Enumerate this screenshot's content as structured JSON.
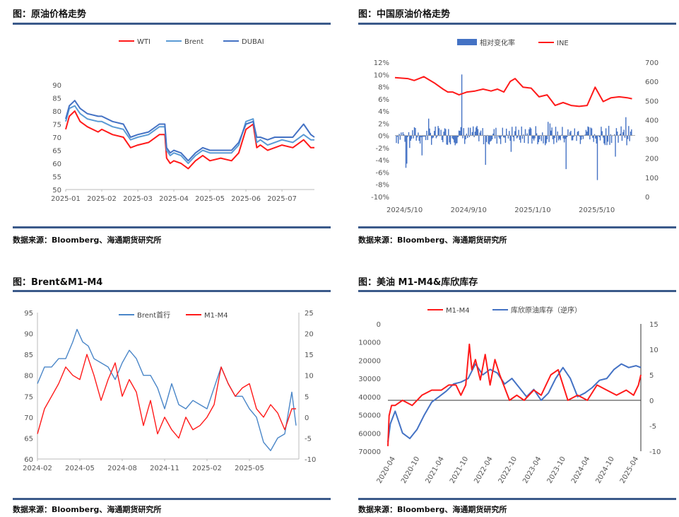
{
  "panels": {
    "p1": {
      "title": "图：原油价格走势",
      "source": "数据来源：Bloomberg、海通期货研究所"
    },
    "p2": {
      "title": "图：中国原油价格走势",
      "source": "数据来源：Bloomberg、海通期货研究所"
    },
    "p3": {
      "title": "图：Brent&M1-M4",
      "source": "数据来源：Bloomberg、海通期货研究所"
    },
    "p4": {
      "title": "图：美油 M1-M4&库欣库存",
      "source": "数据来源：Bloomberg、海通期货研究所"
    }
  },
  "chart_data": [
    {
      "id": "c1",
      "type": "line",
      "title": "",
      "x_ticks": [
        "2025-01",
        "2025-02",
        "2025-03",
        "2025-04",
        "2025-05",
        "2025-06",
        "2025-07"
      ],
      "xlim": [
        0,
        6.9
      ],
      "y_ticks": [
        "50",
        "55",
        "60",
        "65",
        "70",
        "75",
        "80",
        "85",
        "90"
      ],
      "ylim": [
        50,
        90
      ],
      "legend": "top-center",
      "series": [
        {
          "name": "WTI",
          "color": "#ff1a1a",
          "x": [
            0,
            0.1,
            0.25,
            0.4,
            0.6,
            0.9,
            1.0,
            1.3,
            1.6,
            1.8,
            2.0,
            2.3,
            2.6,
            2.75,
            2.8,
            2.9,
            3.0,
            3.2,
            3.4,
            3.6,
            3.8,
            4.0,
            4.3,
            4.6,
            4.8,
            5.0,
            5.2,
            5.3,
            5.4,
            5.6,
            5.8,
            6.0,
            6.3,
            6.6,
            6.8,
            6.9
          ],
          "values": [
            73,
            78,
            80,
            76,
            74,
            72,
            73,
            71,
            70,
            66,
            67,
            68,
            71,
            71,
            62,
            60,
            61,
            60,
            58,
            61,
            63,
            61,
            62,
            61,
            64,
            73,
            75,
            66,
            67,
            65,
            66,
            67,
            66,
            69,
            66,
            66
          ]
        },
        {
          "name": "Brent",
          "color": "#5b9bd5",
          "x": [
            0,
            0.1,
            0.25,
            0.4,
            0.6,
            0.9,
            1.0,
            1.3,
            1.6,
            1.8,
            2.0,
            2.3,
            2.6,
            2.75,
            2.8,
            2.9,
            3.0,
            3.2,
            3.4,
            3.6,
            3.8,
            4.0,
            4.3,
            4.6,
            4.8,
            5.0,
            5.2,
            5.3,
            5.4,
            5.6,
            5.8,
            6.0,
            6.3,
            6.6,
            6.8,
            6.9
          ],
          "values": [
            76,
            81,
            82,
            79,
            77,
            76,
            76,
            74,
            73,
            69,
            70,
            71,
            74,
            74,
            65,
            63,
            64,
            63,
            60,
            63,
            65,
            64,
            64,
            64,
            67,
            76,
            77,
            68,
            69,
            67,
            68,
            69,
            68,
            71,
            69,
            69
          ]
        },
        {
          "name": "DUBAI",
          "color": "#4472c4",
          "x": [
            0,
            0.1,
            0.25,
            0.4,
            0.6,
            0.9,
            1.0,
            1.3,
            1.6,
            1.8,
            2.0,
            2.3,
            2.6,
            2.75,
            2.8,
            2.9,
            3.0,
            3.2,
            3.4,
            3.6,
            3.8,
            4.0,
            4.3,
            4.6,
            4.8,
            5.0,
            5.2,
            5.3,
            5.4,
            5.6,
            5.8,
            6.0,
            6.3,
            6.6,
            6.8,
            6.9
          ],
          "values": [
            77,
            82,
            84,
            81,
            79,
            78,
            78,
            76,
            75,
            70,
            71,
            72,
            75,
            75,
            66,
            64,
            65,
            64,
            61,
            64,
            66,
            65,
            65,
            65,
            68,
            75,
            76,
            70,
            70,
            69,
            70,
            70,
            70,
            75,
            71,
            70
          ]
        }
      ]
    },
    {
      "id": "c2",
      "type": "bar",
      "title": "",
      "x_ticks": [
        "2024/5/10",
        "2024/9/10",
        "2025/1/10",
        "2025/5/10"
      ],
      "xlim": [
        0,
        15
      ],
      "y_left_ticks": [
        "-10%",
        "-8%",
        "-6%",
        "-4%",
        "-2%",
        "0%",
        "2%",
        "4%",
        "6%",
        "8%",
        "10%",
        "12%"
      ],
      "ylim_left": [
        -10,
        12
      ],
      "y_right_ticks": [
        "0",
        "100",
        "200",
        "300",
        "400",
        "500",
        "600",
        "700"
      ],
      "ylim_right": [
        0,
        700
      ],
      "legend": "top-center",
      "series": [
        {
          "name": "相对变化率",
          "type": "bar",
          "color": "#4472c4",
          "axis": "left"
        },
        {
          "name": "INE",
          "type": "line",
          "color": "#ff1a1a",
          "axis": "right",
          "x": [
            0,
            0.8,
            1.2,
            1.8,
            2.5,
            3.0,
            3.3,
            3.6,
            4.0,
            4.5,
            5.0,
            5.5,
            6.0,
            6.4,
            6.8,
            7.2,
            7.5,
            8.0,
            8.5,
            9.0,
            9.5,
            10.0,
            10.5,
            11.0,
            11.5,
            12.0,
            12.5,
            13.0,
            13.5,
            14.0,
            14.5,
            14.8
          ],
          "values": [
            620,
            615,
            605,
            625,
            590,
            560,
            545,
            545,
            530,
            545,
            550,
            560,
            550,
            560,
            545,
            600,
            615,
            570,
            565,
            520,
            530,
            475,
            490,
            475,
            470,
            475,
            570,
            495,
            515,
            520,
            515,
            510
          ]
        }
      ]
    },
    {
      "id": "c3",
      "type": "line",
      "title": "",
      "x_ticks": [
        "2024-02",
        "2024-05",
        "2024-08",
        "2024-11",
        "2025-02",
        "2025-05"
      ],
      "xlim": [
        0,
        18.5
      ],
      "y_left_ticks": [
        "60",
        "65",
        "70",
        "75",
        "80",
        "85",
        "90",
        "95"
      ],
      "ylim_left": [
        60,
        95
      ],
      "y_right_ticks": [
        "-10",
        "-5",
        "0",
        "5",
        "10",
        "15",
        "20",
        "25"
      ],
      "ylim_right": [
        -10,
        25
      ],
      "legend": "top-center",
      "series": [
        {
          "name": "Brent首行",
          "color": "#4a86c8",
          "axis": "left",
          "x": [
            0,
            0.5,
            1.0,
            1.5,
            2.0,
            2.5,
            2.8,
            3.2,
            3.6,
            4.0,
            4.5,
            5.0,
            5.5,
            6.0,
            6.5,
            7.0,
            7.5,
            8.0,
            8.5,
            9.0,
            9.5,
            10.0,
            10.5,
            11.0,
            11.5,
            12.0,
            12.5,
            13.0,
            13.5,
            14.0,
            14.5,
            15.0,
            15.5,
            16.0,
            16.5,
            17.0,
            17.5,
            18.0,
            18.3
          ],
          "values": [
            78,
            82,
            82,
            84,
            84,
            88,
            91,
            88,
            87,
            84,
            83,
            82,
            79,
            83,
            86,
            84,
            80,
            80,
            77,
            72,
            78,
            73,
            72,
            74,
            73,
            72,
            77,
            82,
            78,
            75,
            75,
            72,
            70,
            64,
            62,
            65,
            66,
            76,
            68
          ]
        },
        {
          "name": "M1-M4",
          "color": "#ff1a1a",
          "axis": "right",
          "x": [
            0,
            0.5,
            1.0,
            1.5,
            2.0,
            2.5,
            3.0,
            3.5,
            4.0,
            4.5,
            5.0,
            5.5,
            6.0,
            6.5,
            7.0,
            7.5,
            8.0,
            8.5,
            9.0,
            9.5,
            10.0,
            10.5,
            11.0,
            11.5,
            12.0,
            12.5,
            13.0,
            13.5,
            14.0,
            14.5,
            15.0,
            15.5,
            16.0,
            16.5,
            17.0,
            17.5,
            18.0,
            18.3
          ],
          "values": [
            -4,
            2,
            5,
            8,
            12,
            10,
            9,
            15,
            10,
            4,
            9,
            13,
            5,
            9,
            6,
            -2,
            4,
            -4,
            0,
            -3,
            -5,
            0,
            -3,
            -2,
            0,
            3,
            12,
            8,
            5,
            7,
            8,
            2,
            0,
            3,
            1,
            -3,
            2,
            2
          ]
        }
      ]
    },
    {
      "id": "c4",
      "type": "line",
      "title": "",
      "x_ticks": [
        "2020-04",
        "2020-10",
        "2021-04",
        "2021-10",
        "2022-04",
        "2022-10",
        "2023-04",
        "2023-10",
        "2024-04",
        "2024-10",
        "2025-04"
      ],
      "xlim": [
        0,
        10.4
      ],
      "y_left_ticks": [
        "0",
        "10000",
        "20000",
        "30000",
        "40000",
        "50000",
        "60000",
        "70000"
      ],
      "ylim_left_inverted": [
        0,
        70000
      ],
      "y_right_ticks": [
        "-10",
        "-5",
        "0",
        "5",
        "10",
        "15"
      ],
      "ylim_right": [
        -10,
        15
      ],
      "legend": "top-center",
      "series": [
        {
          "name": "M1-M4",
          "color": "#ff1a1a",
          "axis": "right",
          "x": [
            0,
            0.05,
            0.15,
            0.3,
            0.6,
            1.0,
            1.4,
            1.8,
            2.2,
            2.5,
            2.8,
            3.0,
            3.2,
            3.35,
            3.45,
            3.6,
            3.8,
            4.0,
            4.2,
            4.4,
            4.6,
            5.0,
            5.3,
            5.6,
            6.0,
            6.3,
            6.7,
            7.0,
            7.4,
            7.8,
            8.2,
            8.6,
            9.0,
            9.4,
            9.8,
            10.1,
            10.3,
            10.4
          ],
          "values": [
            -9,
            -3,
            -1,
            -1,
            0,
            -1,
            1,
            2,
            2,
            3,
            3,
            1,
            3,
            11,
            6,
            8,
            4,
            9,
            3,
            8,
            5,
            0,
            1,
            0,
            2,
            1,
            5,
            6,
            0,
            1,
            0,
            3,
            2,
            1,
            2,
            1,
            3,
            5
          ]
        },
        {
          "name": "库欣原油库存（逆序）",
          "color": "#4472c4",
          "axis": "left",
          "x": [
            0,
            0.1,
            0.3,
            0.6,
            0.9,
            1.2,
            1.5,
            1.8,
            2.1,
            2.4,
            2.7,
            3.0,
            3.3,
            3.6,
            3.9,
            4.2,
            4.5,
            4.8,
            5.1,
            5.4,
            5.7,
            6.0,
            6.3,
            6.6,
            6.9,
            7.2,
            7.5,
            7.8,
            8.1,
            8.4,
            8.7,
            9.0,
            9.3,
            9.6,
            9.9,
            10.2,
            10.4
          ],
          "values": [
            65000,
            55000,
            48000,
            60000,
            63000,
            58000,
            50000,
            43000,
            40000,
            37000,
            33000,
            32000,
            30000,
            22000,
            28000,
            25000,
            27000,
            33000,
            30000,
            35000,
            40000,
            36000,
            42000,
            38000,
            30000,
            24000,
            30000,
            40000,
            38000,
            35000,
            31000,
            30000,
            25000,
            22000,
            24000,
            23000,
            24000
          ]
        }
      ]
    }
  ]
}
